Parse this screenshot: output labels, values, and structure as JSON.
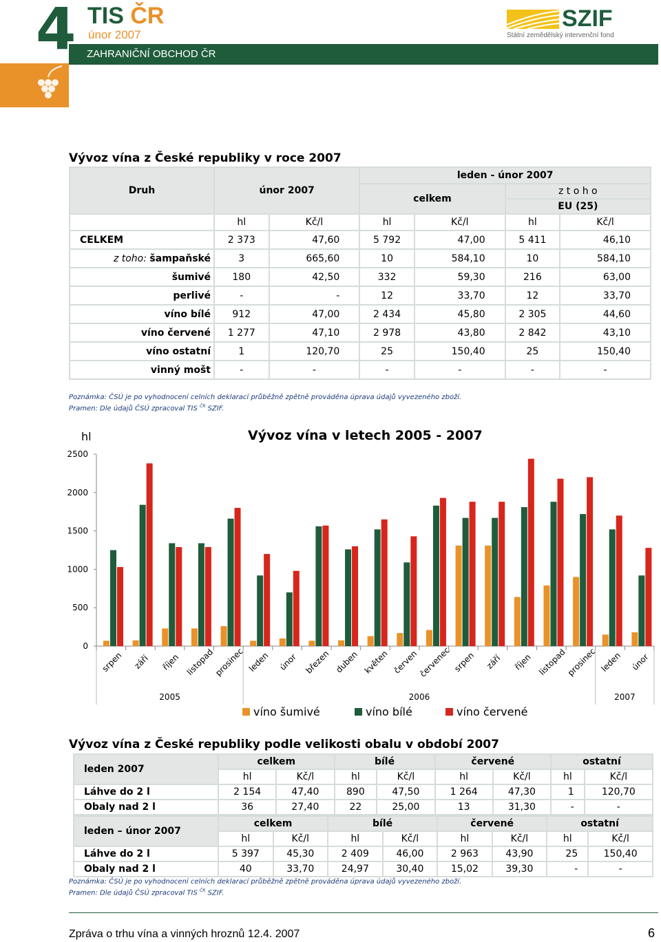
{
  "header": {
    "issue_number": "4",
    "brand_tis": "TIS ",
    "brand_cr": "ČR",
    "issue_date": "únor 2007",
    "section": "ZAHRANIČNÍ OBCHOD ČR",
    "szif_name": "SZIF",
    "szif_full": "Státní zemědělský intervenční fond",
    "colors": {
      "green": "#1f5c3b",
      "orange": "#e9922a"
    }
  },
  "table1": {
    "title": "Vývoz vína z České republiky v roce 2007",
    "col_druh": "Druh",
    "col_unor": "únor 2007",
    "col_period": "leden - únor 2007",
    "col_celkem": "celkem",
    "col_ztoho": "z    t o h o",
    "col_eu": "EU (25)",
    "units": [
      "hl",
      "Kč/l",
      "hl",
      "Kč/l",
      "hl",
      "Kč/l"
    ],
    "ztoho_prefix": "z toho: ",
    "rows": [
      {
        "label": "CELKEM",
        "v": [
          "2 373",
          "47,60",
          "5 792",
          "47,00",
          "5 411",
          "46,10"
        ]
      },
      {
        "label": "šampaňské",
        "v": [
          "3",
          "665,60",
          "10",
          "584,10",
          "10",
          "584,10"
        ]
      },
      {
        "label": "šumivé",
        "v": [
          "180",
          "42,50",
          "332",
          "59,30",
          "216",
          "63,00"
        ]
      },
      {
        "label": "perlivé",
        "v": [
          "-",
          "-",
          "12",
          "33,70",
          "12",
          "33,70"
        ]
      },
      {
        "label": "víno bílé",
        "v": [
          "912",
          "47,00",
          "2 434",
          "45,80",
          "2 305",
          "44,60"
        ]
      },
      {
        "label": "víno červené",
        "v": [
          "1 277",
          "47,10",
          "2 978",
          "43,80",
          "2 842",
          "43,10"
        ]
      },
      {
        "label": "víno ostatní",
        "v": [
          "1",
          "120,70",
          "25",
          "150,40",
          "25",
          "150,40"
        ]
      },
      {
        "label": "vinný mošt",
        "v": [
          "-",
          "-",
          "-",
          "-",
          "-",
          "-"
        ]
      }
    ],
    "note1": "Poznámka: ČSÚ je po vyhodnocení celních deklarací průběžně zpětně prováděna úprava údajů vyvezeného zboží.",
    "note2a": "Pramen: Dle údajů ČSÚ zpracoval TIS ",
    "note2sup": "ČR",
    "note2b": " SZIF."
  },
  "chart_data": {
    "type": "bar",
    "title": "Vývoz vína v letech 2005 - 2007",
    "ylabel": "hl",
    "ylim": [
      0,
      2500
    ],
    "yticks": [
      0,
      500,
      1000,
      1500,
      2000,
      2500
    ],
    "categories": [
      "srpen",
      "září",
      "říjen",
      "listopad",
      "prosinec",
      "leden",
      "únor",
      "březen",
      "duben",
      "květen",
      "červen",
      "červenec",
      "srpen",
      "září",
      "říjen",
      "listopad",
      "prosinec",
      "leden",
      "únor"
    ],
    "year_labels": [
      "2005",
      "2006",
      "2007"
    ],
    "series": [
      {
        "name": "víno šumivé",
        "color": "#e9922a",
        "values": [
          70,
          75,
          230,
          230,
          260,
          70,
          100,
          70,
          75,
          130,
          170,
          210,
          1310,
          1310,
          640,
          790,
          900,
          150,
          180
        ]
      },
      {
        "name": "víno bílé",
        "color": "#1f5c3b",
        "values": [
          1250,
          1840,
          1340,
          1340,
          1660,
          920,
          700,
          1560,
          1260,
          1520,
          1090,
          1830,
          1670,
          1670,
          1810,
          1880,
          1720,
          1520,
          920
        ]
      },
      {
        "name": "víno červené",
        "color": "#d7261c",
        "values": [
          1030,
          2380,
          1290,
          1290,
          1800,
          1200,
          980,
          1570,
          1300,
          1650,
          1430,
          1930,
          1880,
          1880,
          2440,
          2180,
          2200,
          1700,
          1280
        ]
      }
    ],
    "legend": "bottom",
    "grid": false
  },
  "table2": {
    "title": "Vývoz vína z České republiky podle velikosti obalu v období 2007",
    "groups": [
      "celkem",
      "bílé",
      "červené",
      "ostatní"
    ],
    "units": [
      "hl",
      "Kč/l",
      "hl",
      "Kč/l",
      "hl",
      "Kč/l",
      "hl",
      "Kč/l"
    ],
    "sections": [
      {
        "period": "leden 2007",
        "rows": [
          {
            "label": "Láhve do 2 l",
            "v": [
              "2 154",
              "47,40",
              "890",
              "47,50",
              "1 264",
              "47,30",
              "1",
              "120,70"
            ]
          },
          {
            "label": "Obaly nad 2 l",
            "v": [
              "36",
              "27,40",
              "22",
              "25,00",
              "13",
              "31,30",
              "-",
              "-"
            ]
          }
        ]
      },
      {
        "period": "leden – únor 2007",
        "rows": [
          {
            "label": "Láhve do 2 l",
            "v": [
              "5 397",
              "45,30",
              "2 409",
              "46,00",
              "2 963",
              "43,90",
              "25",
              "150,40"
            ]
          },
          {
            "label": "Obaly nad 2 l",
            "v": [
              "40",
              "33,70",
              "24,97",
              "30,40",
              "15,02",
              "39,30",
              "-",
              "-"
            ]
          }
        ]
      }
    ],
    "note1": "Poznámka: ČSÚ je po vyhodnocení celních deklarací průběžně zpětně prováděna úprava údajů vyvezeného zboží.",
    "note2a": "Pramen: Dle údajů ČSÚ zpracoval TIS ",
    "note2sup": "ČR",
    "note2b": " SZIF."
  },
  "footer": {
    "text": "Zpráva o trhu vína a vinných hroznů 12.4. 2007",
    "page": "6"
  }
}
